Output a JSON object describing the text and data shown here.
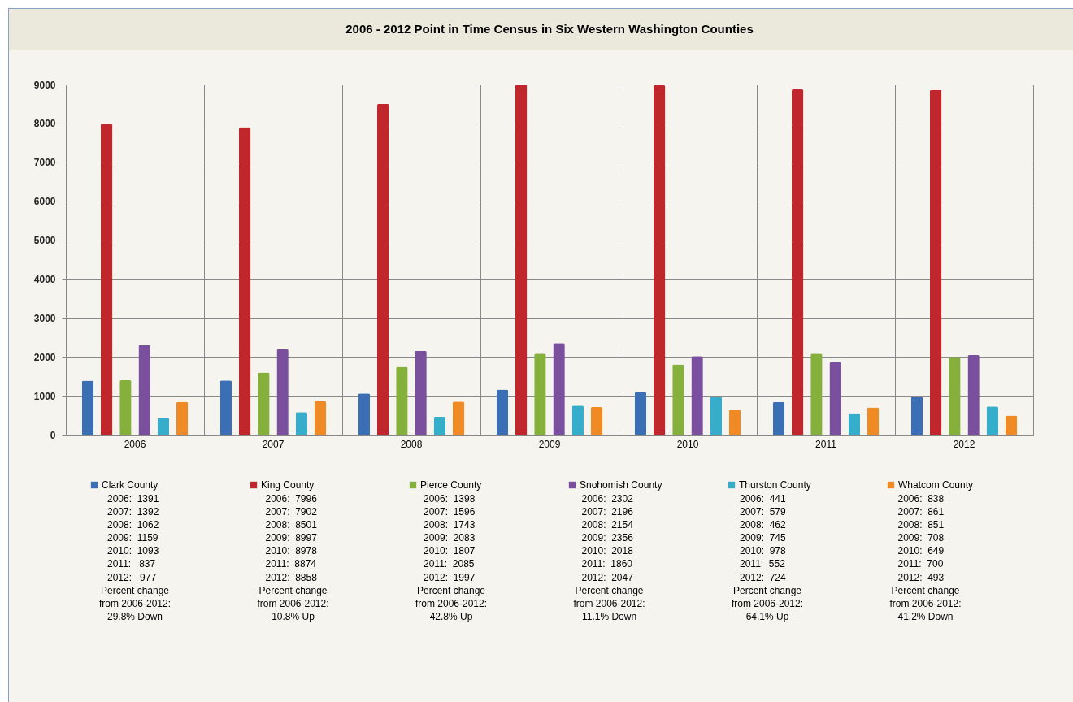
{
  "chart_data": {
    "type": "bar",
    "title": "2006 - 2012 Point in Time Census in Six Western Washington Counties",
    "categories": [
      "2006",
      "2007",
      "2008",
      "2009",
      "2010",
      "2011",
      "2012"
    ],
    "series": [
      {
        "name": "Clark County",
        "color": "#3a6fb5",
        "values": [
          1391,
          1392,
          1062,
          1159,
          1093,
          837,
          977
        ]
      },
      {
        "name": "King County",
        "color": "#c0272d",
        "values": [
          7996,
          7902,
          8501,
          8997,
          8978,
          8874,
          8858
        ]
      },
      {
        "name": "Pierce County",
        "color": "#86b03c",
        "values": [
          1398,
          1596,
          1743,
          2083,
          1807,
          2085,
          1997
        ]
      },
      {
        "name": "Snohomish County",
        "color": "#7a4f9e",
        "values": [
          2302,
          2196,
          2154,
          2356,
          2018,
          1860,
          2047
        ]
      },
      {
        "name": "Thurston County",
        "color": "#36aecb",
        "values": [
          441,
          579,
          462,
          745,
          978,
          552,
          724
        ]
      },
      {
        "name": "Whatcom County",
        "color": "#f08a24",
        "values": [
          838,
          861,
          851,
          708,
          649,
          700,
          493
        ]
      }
    ],
    "annotations": [
      "2006:  1391",
      "2007:  1392",
      "2008:  1062",
      "2009:  1159",
      "2010:  1093",
      "2011:   837",
      "2012:   977",
      "Percent change from 2006-2012: 29.8% Down",
      "2006:  7996",
      "2007:  7902",
      "2008:  8501",
      "2009:  8997",
      "2010:  8978",
      "2011:  8874",
      "2012:  8858",
      "Percent change from 2006-2012: 10.8% Up",
      "2006:  1398",
      "2007:  1596",
      "2008:  1743",
      "2009:  2083",
      "2010:  1807",
      "2011:  2085",
      "2012:  1997",
      "Percent change from 2006-2012: 42.8% Up",
      "2006:  2302",
      "2007:  2196",
      "2008:  2154",
      "2009:  2356",
      "2010:  2018",
      "2011:  1860",
      "2012:  2047",
      "Percent change from 2006-2012: 11.1% Down",
      "2006:  441",
      "2007:  579",
      "2008:  462",
      "2009:  745",
      "2010:  978",
      "2011:  552",
      "2012:  724",
      "Percent change from 2006-2012: 64.1% Up",
      "2006:  838",
      "2007:  861",
      "2008:  851",
      "2009:  708",
      "2010:  649",
      "2011:  700",
      "2012:  493",
      "Percent change from 2006-2012: 41.2% Down"
    ],
    "ylim": [
      0,
      9000
    ],
    "yticks": [
      0,
      1000,
      2000,
      3000,
      4000,
      5000,
      6000,
      7000,
      8000,
      9000
    ],
    "grid": true,
    "legend": "bottom"
  }
}
